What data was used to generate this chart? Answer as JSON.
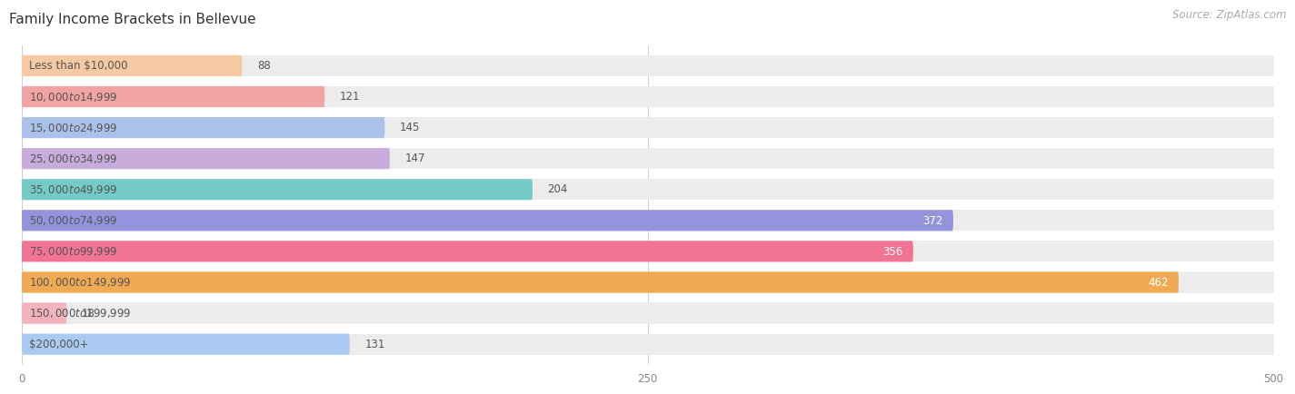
{
  "title": "Family Income Brackets in Bellevue",
  "source": "Source: ZipAtlas.com",
  "categories": [
    "Less than $10,000",
    "$10,000 to $14,999",
    "$15,000 to $24,999",
    "$25,000 to $34,999",
    "$35,000 to $49,999",
    "$50,000 to $74,999",
    "$75,000 to $99,999",
    "$100,000 to $149,999",
    "$150,000 to $199,999",
    "$200,000+"
  ],
  "values": [
    88,
    121,
    145,
    147,
    204,
    372,
    356,
    462,
    18,
    131
  ],
  "bar_colors": [
    "#f5c9a1",
    "#f2a3a3",
    "#aac2ea",
    "#c8acdc",
    "#74cac6",
    "#9494dc",
    "#f27494",
    "#f0aa54",
    "#f2b4bc",
    "#aacaf2"
  ],
  "xlim": [
    0,
    500
  ],
  "xticks": [
    0,
    250,
    500
  ],
  "title_fontsize": 11,
  "source_fontsize": 8.5,
  "label_fontsize": 8.5,
  "value_fontsize": 8.5,
  "bar_height": 0.68,
  "row_bg_color": "#ececec",
  "value_inside_threshold": 300
}
